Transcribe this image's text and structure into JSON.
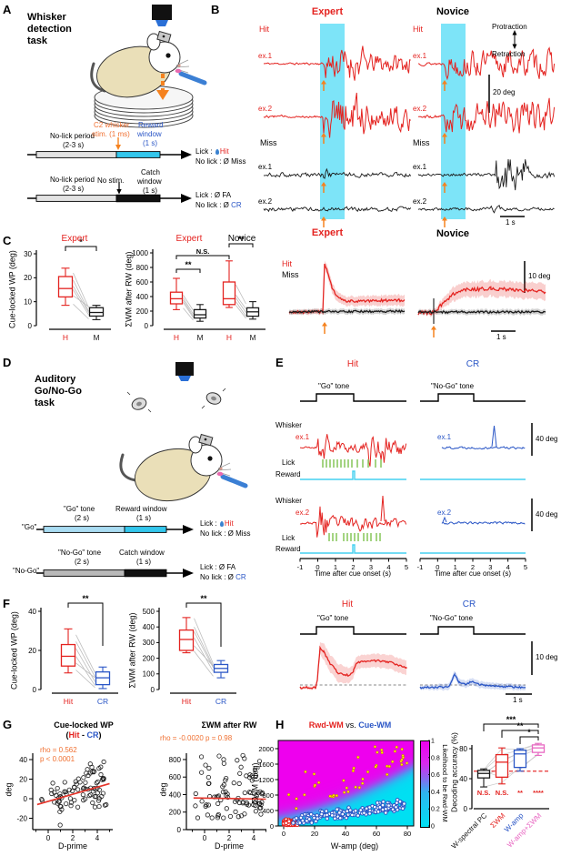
{
  "colors": {
    "red": "#e42320",
    "blue": "#2a56c6",
    "black": "#1a1a1a",
    "orange": "#f5821f",
    "annot": "#f07031",
    "cyan_band": "#7de4f8",
    "cyan_bar": "#33c6ec",
    "lightblue_bar": "#a9dcf2",
    "green": "#8dc963",
    "magenta": "#ee00ee",
    "cyan_heat": "#00e0f2",
    "pink": "#e868c2",
    "trend": "#e63329",
    "gray_pair": "#bdbdbd"
  },
  "lbl": {
    "expert": "Expert",
    "novice": "Novice",
    "hit": "Hit",
    "miss": "Miss",
    "cr": "CR",
    "ex1": "ex.1",
    "ex2": "ex.2",
    "whisker": "Whisker",
    "lick": "Lick",
    "reward": "Reward",
    "protraction": "Protraction",
    "retraction": "Retraction",
    "go_tone": "\"Go\" tone",
    "nogo_tone": "\"No-Go\" tone",
    "time_axis": "Time after cue onset (s)"
  },
  "bars": {
    "deg20": "20 deg",
    "deg10": "10 deg",
    "deg40": "40 deg",
    "s1": "1 s"
  },
  "outcomes": {
    "lick": "Lick : ",
    "hit": "Hit",
    "miss": "No lick : Ø Miss",
    "fa": "Lick : Ø FA",
    "nolick": "No lick : Ø ",
    "cr": "CR"
  },
  "panelA": {
    "label": "A",
    "title": [
      "Whisker",
      "detection",
      "task"
    ],
    "nolick1": "No-lick period",
    "nolick2": "(2-3 s)",
    "stim1": "C2 whisker",
    "stim2": "stim. (1 ms)",
    "rw1": "Reward",
    "rw2": "window",
    "rw3": "(1 s)",
    "nostim": "No stim.",
    "cw1": "Catch",
    "cw2": "window",
    "cw3": "(1 s)"
  },
  "panelB": {
    "label": "B"
  },
  "panelC": {
    "label": "C"
  },
  "panelD": {
    "label": "D",
    "title": [
      "Auditory",
      "Go/No-Go",
      "task"
    ],
    "go": "\"Go\"",
    "nogo": "\"No-Go\"",
    "gotone": "\"Go\" tone",
    "gotone2": "(2 s)",
    "rw": "Reward window",
    "rw2": "(1 s)",
    "nogotone": "\"No-Go\" tone",
    "nogotone2": "(2 s)",
    "cw": "Catch window",
    "cw2": "(1 s)"
  },
  "panelE": {
    "label": "E",
    "xticks": [
      -1,
      0,
      1,
      2,
      3,
      4,
      5
    ]
  },
  "panelF": {
    "label": "F"
  },
  "panelG": {
    "label": "G"
  },
  "panelH": {
    "label": "H"
  },
  "chart_data": [
    {
      "id": "c_left",
      "type": "box",
      "title": "Expert",
      "ylabel": "Cue-locked WP (deg)",
      "yticks": [
        0,
        10,
        20,
        30
      ],
      "ylim": [
        0,
        30
      ],
      "groups": [
        {
          "label": "H",
          "color": "red",
          "stats": [
            8.5,
            12,
            15.5,
            20.5,
            24
          ]
        },
        {
          "label": "M",
          "color": "black",
          "stats": [
            2.5,
            4,
            5.5,
            7.5,
            8.5
          ]
        }
      ],
      "pairs": [
        {
          "a": 0,
          "b": 1,
          "v": [
            [
              22,
              7.5
            ],
            [
              19,
              6
            ],
            [
              16.5,
              5.5
            ],
            [
              15,
              4.5
            ],
            [
              12.5,
              8
            ],
            [
              9,
              2.8
            ]
          ]
        }
      ],
      "sig": [
        {
          "a": 0,
          "b": 1,
          "label": "*"
        }
      ]
    },
    {
      "id": "c_right",
      "type": "box",
      "titles": [
        "Expert",
        "Novice"
      ],
      "ylabel": "ΣWM after RW (deg)",
      "yticks": [
        0,
        200,
        400,
        600,
        800,
        1000
      ],
      "ylim": [
        0,
        1000
      ],
      "groups": [
        {
          "label": "H",
          "color": "red",
          "stats": [
            220,
            300,
            370,
            460,
            650
          ]
        },
        {
          "label": "M",
          "color": "black",
          "stats": [
            60,
            105,
            150,
            220,
            290
          ]
        },
        {
          "label": "H",
          "color": "red",
          "stats": [
            250,
            290,
            370,
            600,
            890
          ]
        },
        {
          "label": "M",
          "color": "black",
          "stats": [
            90,
            130,
            190,
            245,
            330
          ]
        }
      ],
      "pairs": [
        {
          "a": 0,
          "b": 1,
          "v": [
            [
              420,
              210
            ],
            [
              380,
              160
            ],
            [
              350,
              130
            ],
            [
              320,
              110
            ],
            [
              240,
              75
            ]
          ]
        },
        {
          "a": 2,
          "b": 3,
          "v": [
            [
              560,
              300
            ],
            [
              420,
              230
            ],
            [
              380,
              180
            ],
            [
              330,
              130
            ],
            [
              280,
              100
            ]
          ]
        }
      ],
      "sig": [
        {
          "a": 0,
          "b": 1,
          "label": "**"
        },
        {
          "a": 0,
          "b": 2,
          "label": "N.S."
        },
        {
          "a": 2,
          "b": 3,
          "label": "**"
        }
      ]
    },
    {
      "id": "f_left",
      "type": "box",
      "ylabel": "Cue-locked WP (deg)",
      "yticks": [
        0,
        20,
        40
      ],
      "ylim": [
        0,
        40
      ],
      "groups": [
        {
          "label": "Hit",
          "color": "red",
          "stats": [
            8.5,
            12,
            17,
            23,
            31
          ]
        },
        {
          "label": "CR",
          "color": "blue",
          "stats": [
            0.5,
            2.5,
            6,
            9,
            11.5
          ]
        }
      ],
      "pairs": [
        {
          "a": 0,
          "b": 1,
          "v": [
            [
              28,
              8.5
            ],
            [
              24.5,
              6.5
            ],
            [
              21,
              4
            ],
            [
              17,
              2
            ],
            [
              13.5,
              6
            ],
            [
              10,
              1
            ]
          ]
        }
      ],
      "sig": [
        {
          "a": 0,
          "b": 1,
          "label": "**"
        }
      ]
    },
    {
      "id": "f_right",
      "type": "box",
      "ylabel": "ΣWM after RW (deg)",
      "yticks": [
        0,
        100,
        200,
        300,
        400,
        500
      ],
      "ylim": [
        0,
        500
      ],
      "groups": [
        {
          "label": "Hit",
          "color": "red",
          "stats": [
            235,
            250,
            320,
            380,
            460
          ]
        },
        {
          "label": "CR",
          "color": "blue",
          "stats": [
            75,
            110,
            135,
            160,
            185
          ]
        }
      ],
      "pairs": [
        {
          "a": 0,
          "b": 1,
          "v": [
            [
              455,
              165
            ],
            [
              400,
              150
            ],
            [
              370,
              140
            ],
            [
              330,
              115
            ],
            [
              280,
              150
            ],
            [
              245,
              85
            ]
          ]
        }
      ],
      "sig": [
        {
          "a": 0,
          "b": 1,
          "label": "**"
        }
      ]
    },
    {
      "id": "g_left",
      "type": "scatter",
      "title": "Cue-locked WP",
      "subtitle_parts": [
        "(",
        "Hit",
        " - ",
        "CR",
        ")"
      ],
      "annot": [
        "rho = 0.562",
        "p < 0.0001"
      ],
      "xlabel": "D-prime",
      "ylabel": "deg",
      "xticks": [
        0,
        2,
        4
      ],
      "yticks": [
        -20,
        0,
        20,
        40
      ],
      "n": 88,
      "seed": 7,
      "trend": [
        [
          -0.9,
          -6
        ],
        [
          5,
          15.4
        ]
      ],
      "dist": {
        "slope": 4.2,
        "intercept": -5,
        "noise": 11,
        "yclip": [
          -27,
          45
        ]
      }
    },
    {
      "id": "g_right",
      "type": "scatter",
      "title": "ΣWM after RW",
      "annot": [
        "rho = -0.0020  p = 0.98"
      ],
      "xlabel": "D-prime",
      "ylabel": "deg",
      "xticks": [
        0,
        2,
        4
      ],
      "yticks": [
        0,
        200,
        400,
        600,
        800
      ],
      "n": 88,
      "seed": 19,
      "trend": [
        [
          -0.9,
          362
        ],
        [
          5,
          348
        ]
      ],
      "dist": {
        "ymix": [
          130,
          300,
          420,
          440
        ],
        "lowfrac": 0.62,
        "yclip": [
          30,
          860
        ]
      }
    },
    {
      "id": "h_heat",
      "type": "heatmap",
      "title_parts": [
        "Rwd-WM",
        " vs. ",
        "Cue-WM"
      ],
      "xlabel": "W-amp (deg)",
      "ylabel": "ΣWM (deg)",
      "xticks": [
        0,
        20,
        40,
        60,
        80
      ],
      "yticks": [
        0,
        400,
        800,
        1200,
        1600,
        2000
      ],
      "xlim": [
        0,
        80
      ],
      "ylim": [
        0,
        2200
      ],
      "colorbar": {
        "label": "Likelihood to be Rwd-WM",
        "ticks": [
          1,
          0.8,
          0.6,
          0.4,
          0.2,
          0
        ]
      },
      "boundary": [
        260,
        8,
        0.09
      ],
      "sigma": 95,
      "clusters": {
        "red": {
          "n": 125,
          "seed": 31
        },
        "blue": {
          "n": 195,
          "seed": 32
        },
        "yellow": {
          "n": 45,
          "seed": 33
        }
      }
    },
    {
      "id": "h_box",
      "type": "box",
      "ylabel": "Decoding accuracy (%)",
      "yticks": [
        0,
        40,
        80
      ],
      "ylim": [
        0,
        80
      ],
      "ref_line": 50,
      "groups": [
        {
          "label": "W-spectral PC",
          "color": "black",
          "stats": [
            29,
            41,
            47,
            51,
            53
          ],
          "sub": "N.S."
        },
        {
          "label": "ΣWM",
          "color": "red",
          "stats": [
            33,
            42,
            62,
            72,
            81
          ],
          "sub": "N.S."
        },
        {
          "label": "W-amp",
          "color": "blue",
          "stats": [
            50,
            55,
            73,
            78,
            80
          ],
          "sub": "**"
        },
        {
          "label": "W-amp+ΣWM",
          "color": "pink",
          "stats": [
            71,
            75,
            81,
            85,
            87
          ],
          "sub": "****"
        }
      ],
      "lines": [
        [
          47,
          63,
          75,
          83
        ],
        [
          51,
          72,
          78,
          86
        ],
        [
          43,
          55,
          70,
          80
        ],
        [
          50,
          42,
          52,
          74
        ],
        [
          29,
          35,
          55,
          72
        ],
        [
          52,
          80,
          79,
          87
        ],
        [
          45,
          65,
          74,
          82
        ]
      ],
      "sig": [
        {
          "a": 0,
          "b": 3,
          "label": "***"
        },
        {
          "a": 1,
          "b": 3,
          "label": "**"
        },
        {
          "a": 2,
          "b": 3,
          "label": "*"
        }
      ]
    }
  ]
}
